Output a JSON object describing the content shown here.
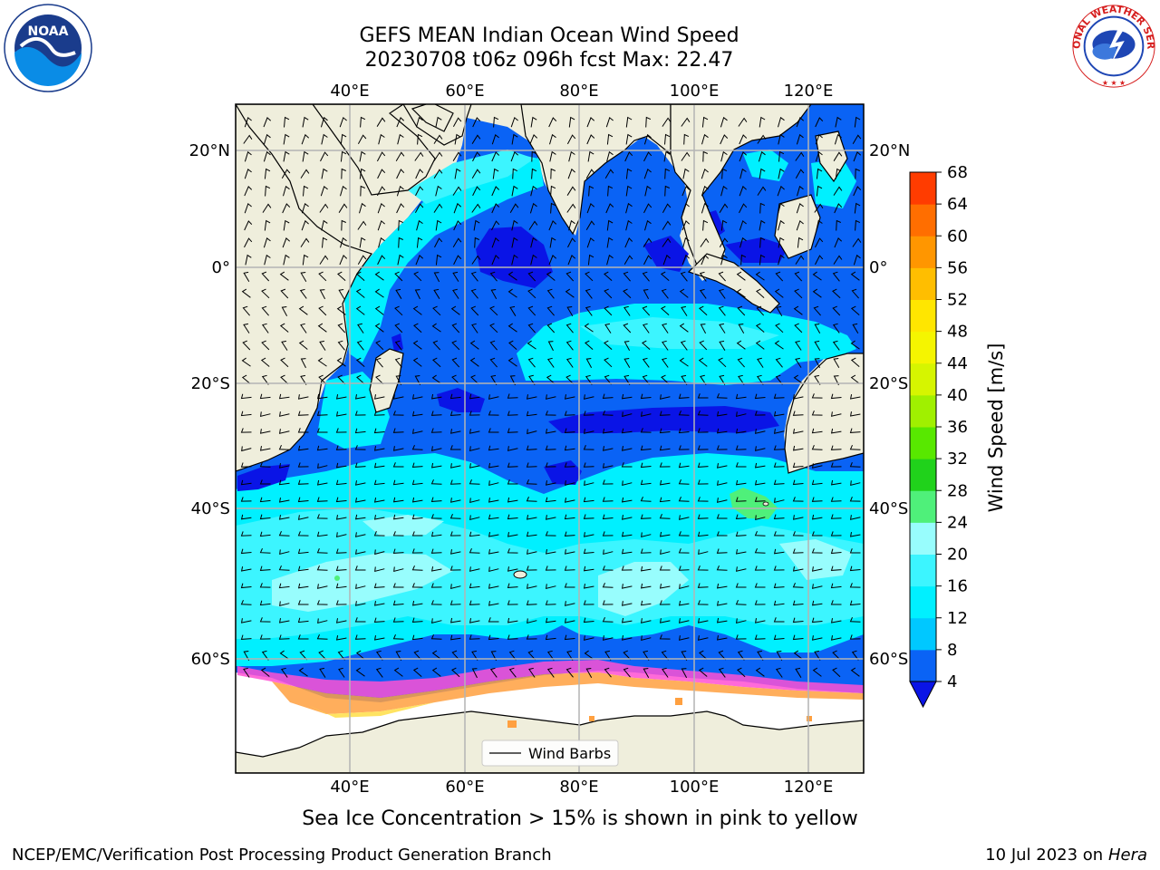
{
  "title": {
    "line1": "GEFS MEAN Indian Ocean Wind Speed",
    "line2": "20230708 t06z 096h fcst   Max: 22.47"
  },
  "map": {
    "lon_range": [
      20,
      130
    ],
    "lat_range": [
      -73,
      28
    ],
    "top_lon_ticks": [
      "40°E",
      "60°E",
      "80°E",
      "100°E",
      "120°E"
    ],
    "bottom_lon_ticks": [
      "40°E",
      "60°E",
      "80°E",
      "100°E",
      "120°E"
    ],
    "left_lat_ticks": [
      "20°N",
      "0°",
      "20°S",
      "40°S",
      "60°S"
    ],
    "right_lat_ticks": [
      "20°N",
      "0°",
      "20°S",
      "40°S",
      "60°S"
    ],
    "gridlines": true,
    "land_color": "#efeedc",
    "legend_label": "Wind Barbs",
    "legend_placement": "bottom-center"
  },
  "colorbar": {
    "label": "Wind Speed [m/s]",
    "ticks": [
      "4",
      "8",
      "12",
      "16",
      "20",
      "24",
      "28",
      "32",
      "36",
      "40",
      "44",
      "48",
      "52",
      "56",
      "60",
      "64",
      "68"
    ],
    "colors": [
      "#0a63f5",
      "#00c8ff",
      "#00f0ff",
      "#3cf5ff",
      "#98fdfd",
      "#4ff07a",
      "#20d21b",
      "#58e800",
      "#a0f000",
      "#d6f500",
      "#f5f500",
      "#ffe600",
      "#ffbe00",
      "#ff9600",
      "#ff6e00",
      "#ff3c00",
      "#ff0000"
    ],
    "extend": "min",
    "under_color": "#0a14e6"
  },
  "colors": {
    "band_4_8": "#0a63f5",
    "band_0_4": "#0a14e6",
    "band_8_12": "#00f0ff",
    "band_12_16": "#3cf5ff",
    "band_16_20": "#98fdfd",
    "band_20_24": "#4ff07a",
    "sea_ice_pink": "#ff50d2",
    "sea_ice_orange": "#ffa040",
    "sea_ice_yellow": "#ffe050"
  },
  "sea_ice_note": "Sea Ice Concentration > 15% is shown in pink to yellow",
  "footer": {
    "left": "NCEP/EMC/Verification Post Processing Product Generation Branch",
    "right_date": "10 Jul 2023 on",
    "right_machine": "Hera"
  },
  "logos": {
    "left": {
      "icon": "noaa-logo-icon",
      "text": "NOAA"
    },
    "right": {
      "icon": "nws-logo-icon",
      "text": "NATIONAL WEATHER SERVICE"
    }
  }
}
